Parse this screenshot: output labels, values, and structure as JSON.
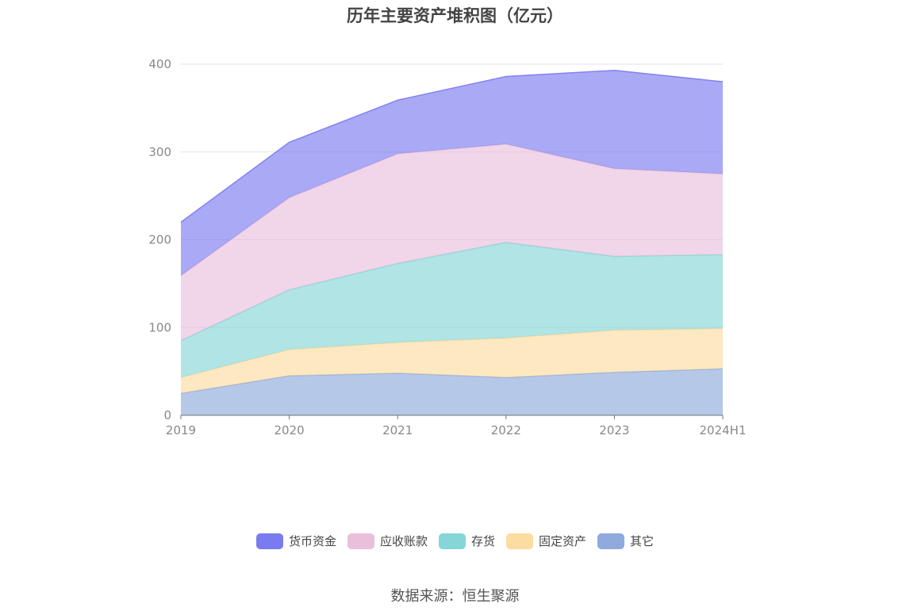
{
  "chart_data": {
    "type": "area",
    "stacked": true,
    "title": "历年主要资产堆积图（亿元）",
    "categories": [
      "2019",
      "2020",
      "2021",
      "2022",
      "2023",
      "2024H1"
    ],
    "ylim": [
      0,
      400
    ],
    "yticks": [
      "0",
      "100",
      "200",
      "300",
      "400"
    ],
    "grid": true,
    "legend_position": "bottom",
    "series": [
      {
        "name": "其它",
        "color": "#8FAADC",
        "values": [
          25,
          45,
          48,
          43,
          49,
          53
        ]
      },
      {
        "name": "固定资产",
        "color": "#FCDCA0",
        "values": [
          18,
          30,
          35,
          45,
          48,
          46
        ]
      },
      {
        "name": "存货",
        "color": "#85D6D7",
        "values": [
          42,
          68,
          90,
          109,
          84,
          84
        ]
      },
      {
        "name": "应收账款",
        "color": "#EABFDC",
        "values": [
          74,
          105,
          125,
          112,
          100,
          92
        ]
      },
      {
        "name": "货币资金",
        "color": "#7B7BF1",
        "values": [
          61,
          63,
          61,
          77,
          112,
          105
        ]
      }
    ]
  },
  "legend": {
    "items": [
      {
        "label": "货币资金",
        "color": "#7B7BF1"
      },
      {
        "label": "应收账款",
        "color": "#EABFDC"
      },
      {
        "label": "存货",
        "color": "#85D6D7"
      },
      {
        "label": "固定资产",
        "color": "#FCDCA0"
      },
      {
        "label": "其它",
        "color": "#8FAADC"
      }
    ]
  },
  "source": "数据来源：恒生聚源"
}
